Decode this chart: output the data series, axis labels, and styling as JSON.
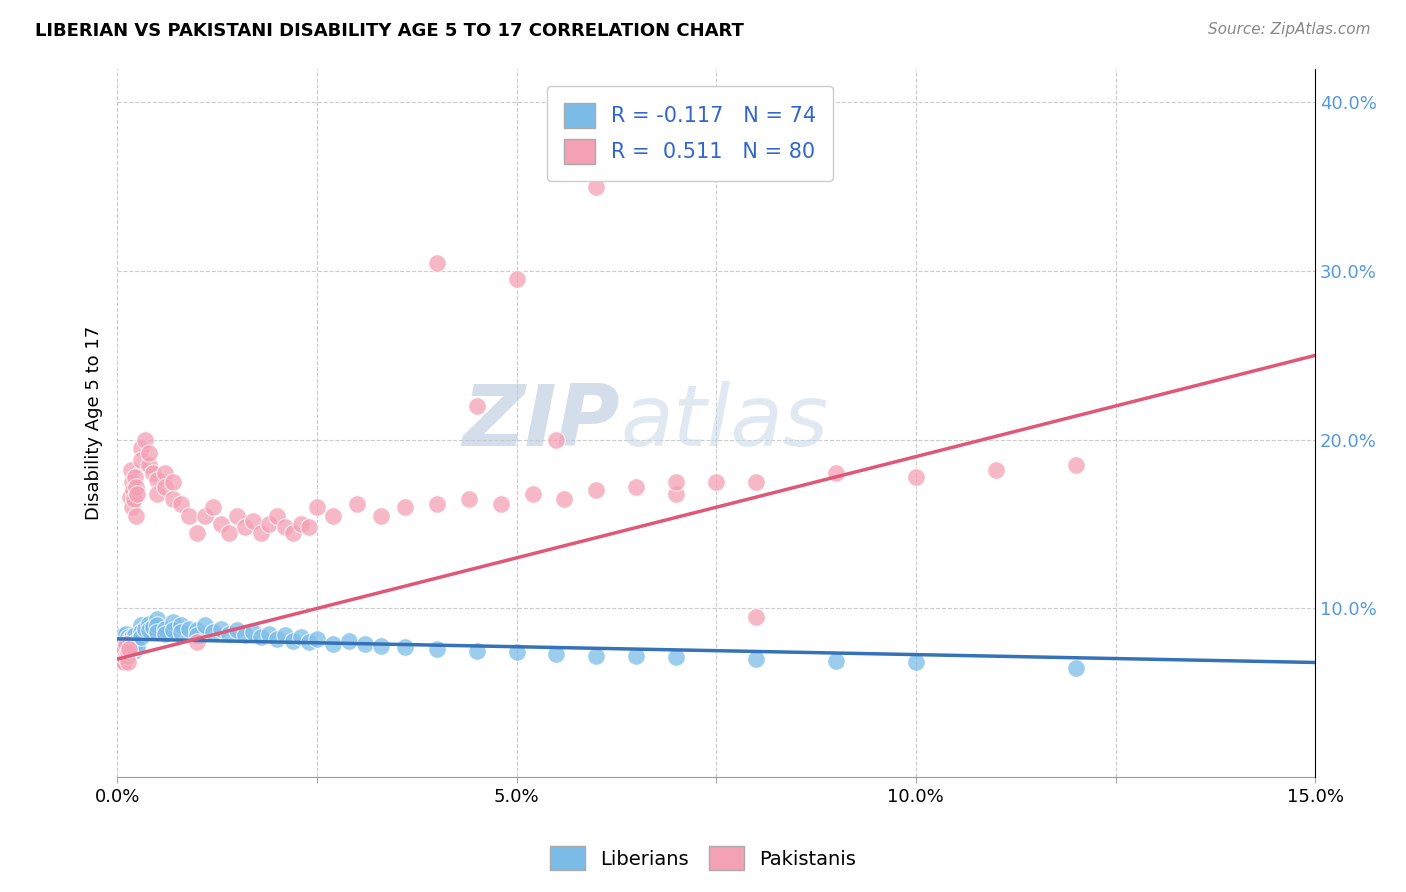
{
  "title": "LIBERIAN VS PAKISTANI DISABILITY AGE 5 TO 17 CORRELATION CHART",
  "source": "Source: ZipAtlas.com",
  "ylabel": "Disability Age 5 to 17",
  "xlim": [
    0.0,
    0.15
  ],
  "ylim": [
    0.0,
    0.42
  ],
  "xtick_vals": [
    0.0,
    0.025,
    0.05,
    0.075,
    0.1,
    0.125,
    0.15
  ],
  "xticklabels": [
    "0.0%",
    "",
    "5.0%",
    "",
    "10.0%",
    "",
    "15.0%"
  ],
  "ytick_vals": [
    0.1,
    0.2,
    0.3,
    0.4
  ],
  "yticklabels_right": [
    "10.0%",
    "20.0%",
    "30.0%",
    "40.0%"
  ],
  "liberian_color": "#7bbde8",
  "pakistani_color": "#f4a0b5",
  "liberian_line_color": "#3572b8",
  "pakistani_line_color": "#e05878",
  "liberian_R": -0.117,
  "liberian_N": 74,
  "pakistani_R": 0.511,
  "pakistani_N": 80,
  "watermark": "ZIPatlas",
  "background_color": "#ffffff",
  "grid_color": "#cccccc",
  "right_tick_color": "#5599dd",
  "liberian_x": [
    0.0002,
    0.0003,
    0.0004,
    0.0005,
    0.0006,
    0.0007,
    0.0008,
    0.0009,
    0.001,
    0.0011,
    0.0012,
    0.0013,
    0.0014,
    0.0015,
    0.0016,
    0.0017,
    0.0018,
    0.0019,
    0.002,
    0.0021,
    0.0022,
    0.0023,
    0.0024,
    0.0025,
    0.003,
    0.003,
    0.003,
    0.0035,
    0.004,
    0.004,
    0.0045,
    0.005,
    0.005,
    0.005,
    0.006,
    0.006,
    0.007,
    0.007,
    0.008,
    0.008,
    0.009,
    0.01,
    0.01,
    0.011,
    0.012,
    0.013,
    0.014,
    0.015,
    0.016,
    0.017,
    0.018,
    0.019,
    0.02,
    0.021,
    0.022,
    0.023,
    0.024,
    0.025,
    0.027,
    0.029,
    0.031,
    0.033,
    0.036,
    0.04,
    0.045,
    0.05,
    0.055,
    0.06,
    0.065,
    0.07,
    0.08,
    0.09,
    0.1,
    0.12
  ],
  "liberian_y": [
    0.08,
    0.083,
    0.076,
    0.079,
    0.082,
    0.084,
    0.078,
    0.081,
    0.077,
    0.085,
    0.074,
    0.079,
    0.083,
    0.08,
    0.082,
    0.076,
    0.083,
    0.079,
    0.081,
    0.075,
    0.084,
    0.078,
    0.08,
    0.077,
    0.09,
    0.086,
    0.083,
    0.088,
    0.091,
    0.087,
    0.089,
    0.094,
    0.09,
    0.086,
    0.088,
    0.085,
    0.092,
    0.087,
    0.09,
    0.086,
    0.088,
    0.087,
    0.084,
    0.09,
    0.086,
    0.088,
    0.085,
    0.087,
    0.084,
    0.086,
    0.083,
    0.085,
    0.082,
    0.084,
    0.081,
    0.083,
    0.08,
    0.082,
    0.079,
    0.081,
    0.079,
    0.078,
    0.077,
    0.076,
    0.075,
    0.074,
    0.073,
    0.072,
    0.072,
    0.071,
    0.07,
    0.069,
    0.068,
    0.065
  ],
  "pakistani_x": [
    0.0002,
    0.0003,
    0.0004,
    0.0005,
    0.0006,
    0.0007,
    0.0008,
    0.0009,
    0.001,
    0.0011,
    0.0012,
    0.0013,
    0.0014,
    0.0015,
    0.0016,
    0.0017,
    0.0018,
    0.0019,
    0.002,
    0.0021,
    0.0022,
    0.0023,
    0.0024,
    0.0025,
    0.003,
    0.003,
    0.0035,
    0.004,
    0.004,
    0.0045,
    0.005,
    0.005,
    0.006,
    0.006,
    0.007,
    0.007,
    0.008,
    0.009,
    0.01,
    0.01,
    0.011,
    0.012,
    0.013,
    0.014,
    0.015,
    0.016,
    0.017,
    0.018,
    0.019,
    0.02,
    0.021,
    0.022,
    0.023,
    0.024,
    0.025,
    0.027,
    0.03,
    0.033,
    0.036,
    0.04,
    0.044,
    0.048,
    0.052,
    0.056,
    0.06,
    0.065,
    0.07,
    0.075,
    0.08,
    0.09,
    0.1,
    0.11,
    0.12,
    0.04,
    0.05,
    0.06,
    0.045,
    0.055,
    0.07,
    0.08
  ],
  "pakistani_y": [
    0.075,
    0.078,
    0.07,
    0.074,
    0.069,
    0.073,
    0.068,
    0.076,
    0.071,
    0.079,
    0.072,
    0.074,
    0.068,
    0.076,
    0.166,
    0.182,
    0.175,
    0.16,
    0.17,
    0.165,
    0.178,
    0.155,
    0.172,
    0.168,
    0.195,
    0.188,
    0.2,
    0.185,
    0.192,
    0.18,
    0.176,
    0.168,
    0.18,
    0.172,
    0.175,
    0.165,
    0.162,
    0.155,
    0.08,
    0.145,
    0.155,
    0.16,
    0.15,
    0.145,
    0.155,
    0.148,
    0.152,
    0.145,
    0.15,
    0.155,
    0.148,
    0.145,
    0.15,
    0.148,
    0.16,
    0.155,
    0.162,
    0.155,
    0.16,
    0.162,
    0.165,
    0.162,
    0.168,
    0.165,
    0.17,
    0.172,
    0.168,
    0.175,
    0.175,
    0.18,
    0.178,
    0.182,
    0.185,
    0.305,
    0.295,
    0.35,
    0.22,
    0.2,
    0.175,
    0.095
  ]
}
